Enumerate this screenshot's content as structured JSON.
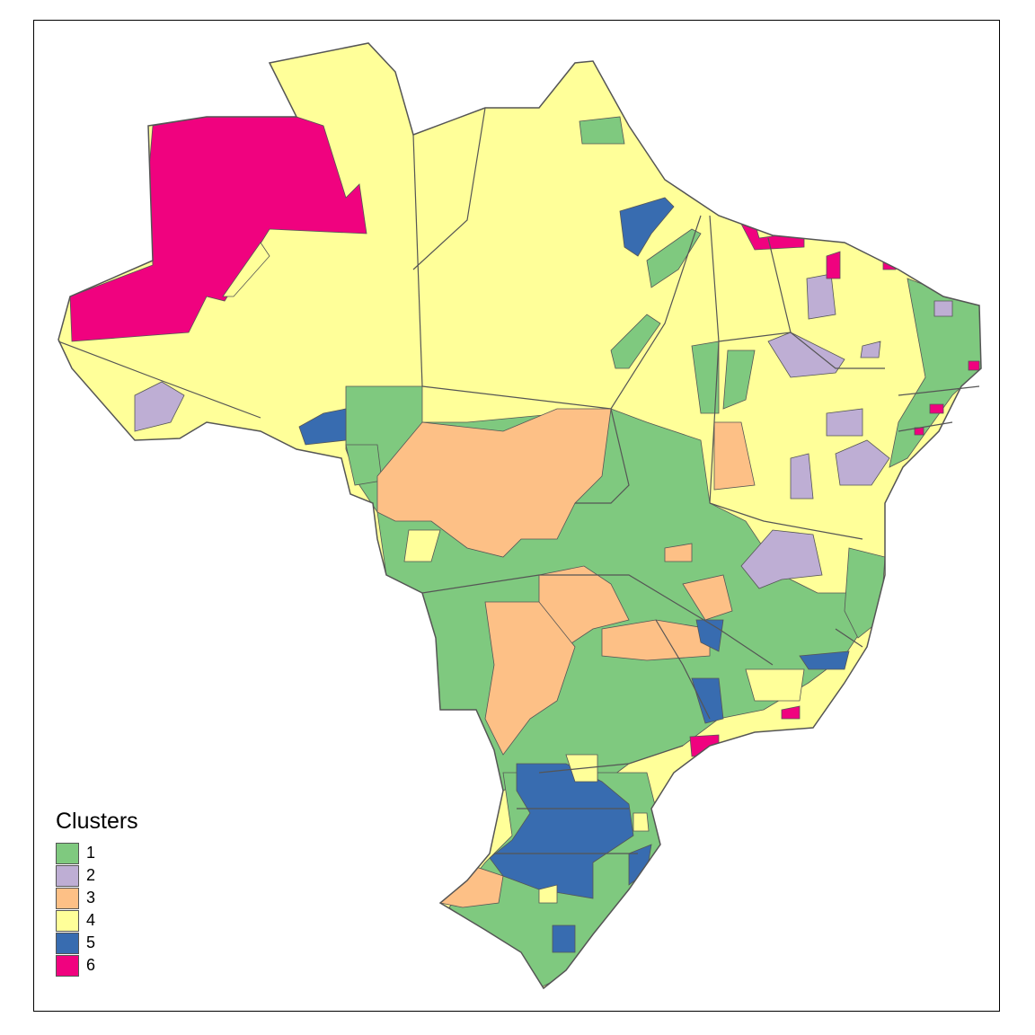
{
  "legend": {
    "title": "Clusters",
    "items": [
      {
        "label": "1",
        "color": "#7fc97f"
      },
      {
        "label": "2",
        "color": "#beaed4"
      },
      {
        "label": "3",
        "color": "#fdc086"
      },
      {
        "label": "4",
        "color": "#ffff99"
      },
      {
        "label": "5",
        "color": "#386cb0"
      },
      {
        "label": "6",
        "color": "#f0027f"
      }
    ]
  },
  "map": {
    "region": "Brazil",
    "border_color": "#555555"
  }
}
